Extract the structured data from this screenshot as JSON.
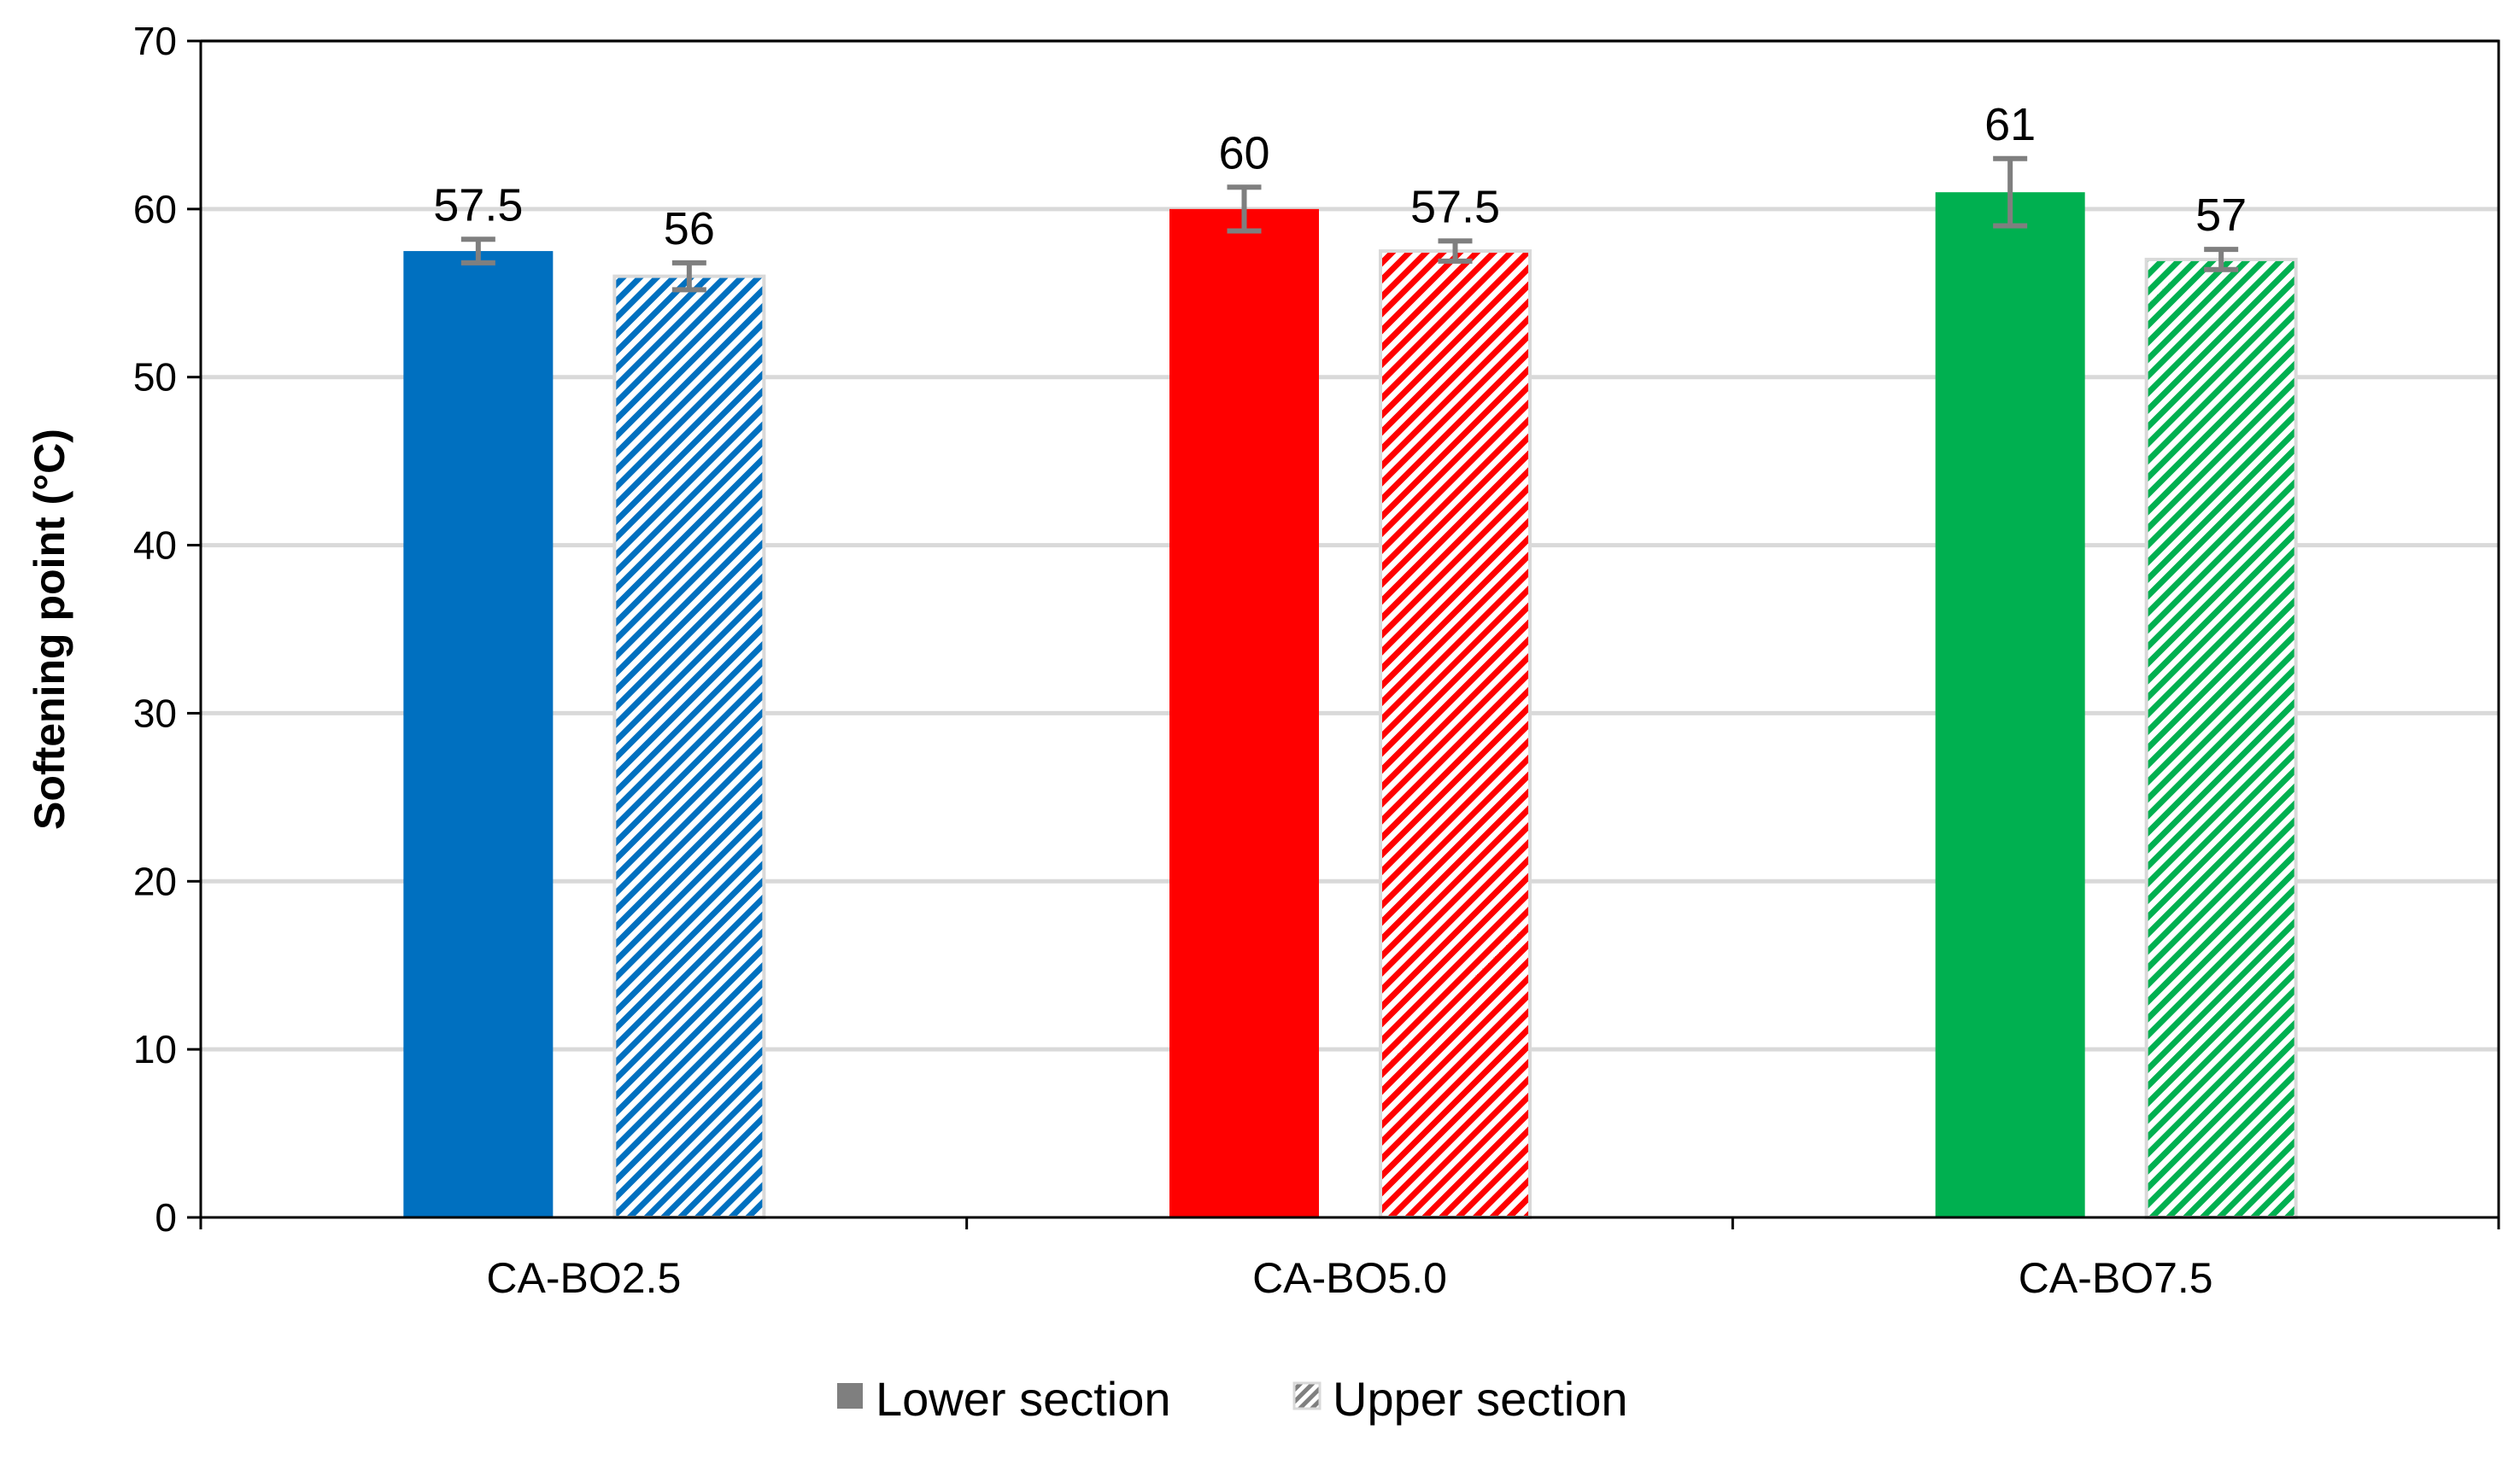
{
  "chart_data": {
    "type": "bar",
    "categories": [
      "CA-BO2.5",
      "CA-BO5.0",
      "CA-BO7.5"
    ],
    "series": [
      {
        "name": "Lower section",
        "pattern": "solid",
        "values": [
          57.5,
          60,
          61
        ],
        "errors": [
          0.7,
          1.3,
          2.0
        ]
      },
      {
        "name": "Upper section",
        "pattern": "hatched",
        "values": [
          56,
          57.5,
          57
        ],
        "errors": [
          0.8,
          0.6,
          0.6
        ]
      }
    ],
    "data_labels": [
      [
        "57.5",
        "56"
      ],
      [
        "60",
        "57.5"
      ],
      [
        "61",
        "57"
      ]
    ],
    "category_colors": [
      "#0070C0",
      "#FF0000",
      "#00B050"
    ],
    "ylabel": "Softening point (°C)",
    "xlabel": "",
    "title": "",
    "ylim": [
      0,
      70
    ],
    "yticks": [
      0,
      10,
      20,
      30,
      40,
      50,
      60,
      70
    ],
    "grid": true,
    "legend_position": "bottom",
    "error_bar_color": "#7F7F7F",
    "gridline_color": "#D9D9D9",
    "legend_swatch_color": "#7F7F7F"
  }
}
